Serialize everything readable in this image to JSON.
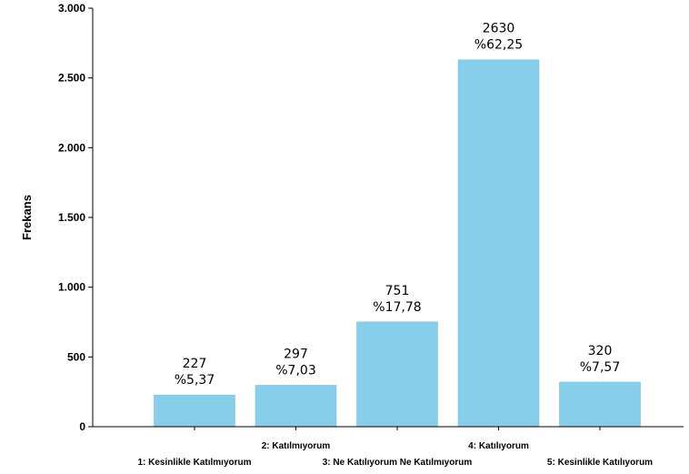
{
  "chart_data": {
    "type": "bar",
    "ylabel": "Frekans",
    "xlabel": "",
    "ylim": [
      0,
      3000
    ],
    "yticks": [
      0,
      500,
      1000,
      1500,
      2000,
      2500,
      3000
    ],
    "ytick_labels": [
      "0",
      "500",
      "1.000",
      "1.500",
      "2.000",
      "2.500",
      "3.000"
    ],
    "categories": [
      "1: Kesinlikle Katılmıyorum",
      "2: Katılmıyorum",
      "3: Ne Katılıyorum Ne Katılmıyorum",
      "4: Katılıyorum",
      "5: Kesinlikle Katılıyorum"
    ],
    "values": [
      227,
      297,
      751,
      2630,
      320
    ],
    "value_labels": [
      "227",
      "297",
      "751",
      "2630",
      "320"
    ],
    "percent_labels": [
      "%5,37",
      "%7,03",
      "%17,78",
      "%62,25",
      "%7,57"
    ],
    "bar_color": "#87CEEB",
    "grid": false,
    "legend": "none"
  }
}
